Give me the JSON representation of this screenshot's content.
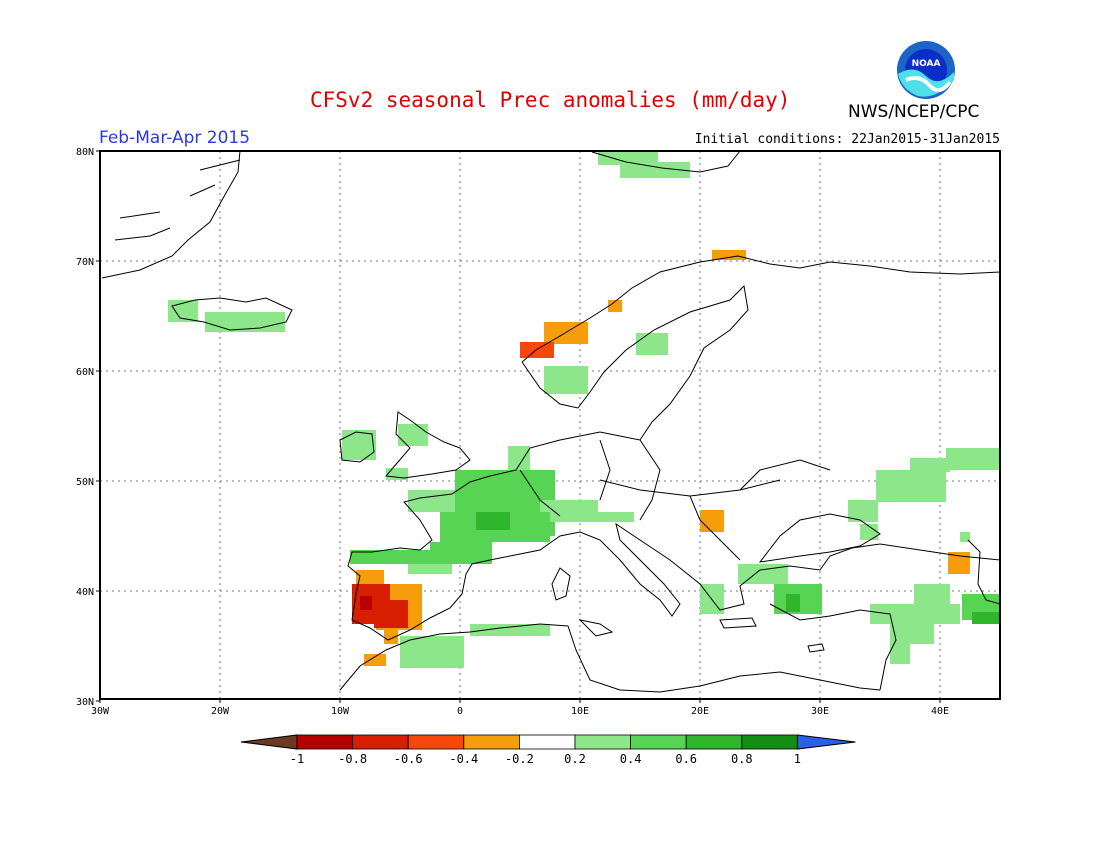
{
  "header": {
    "title": "CFSv2 seasonal Prec anomalies (mm/day)",
    "period": "Feb-Mar-Apr 2015",
    "initial_conditions": "Initial conditions: 22Jan2015-31Jan2015",
    "organization": "NWS/NCEP/CPC",
    "logo_text": "NOAA"
  },
  "map": {
    "lon_ticks": [
      "30W",
      "20W",
      "10W",
      "0",
      "10E",
      "20E",
      "30E",
      "40E"
    ],
    "lat_ticks": [
      "80N",
      "70N",
      "60N",
      "50N",
      "40N",
      "30N"
    ]
  },
  "colorbar": {
    "labels": [
      "-1",
      "-0.8",
      "-0.6",
      "-0.4",
      "-0.2",
      "0.2",
      "0.4",
      "0.6",
      "0.8",
      "1"
    ],
    "colors": [
      "#6b3a22",
      "#b60000",
      "#d81e00",
      "#f5480a",
      "#f59d0a",
      "#ffffff",
      "#8ee68a",
      "#57d454",
      "#2fb62c",
      "#138e13",
      "#2a5fe8"
    ]
  }
}
